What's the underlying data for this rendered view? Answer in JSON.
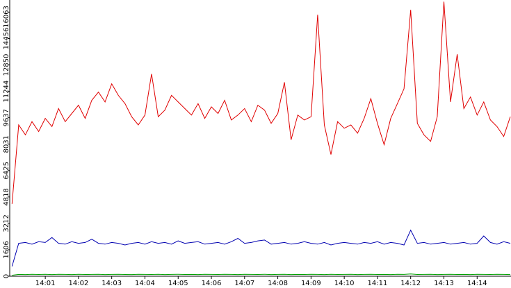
{
  "chart_data": {
    "type": "line",
    "x": [
      840,
      840.2,
      840.4,
      840.6,
      840.8,
      841,
      841.2,
      841.4,
      841.6,
      841.8,
      842,
      842.2,
      842.4,
      842.6,
      842.8,
      843,
      843.2,
      843.4,
      843.6,
      843.8,
      844,
      844.2,
      844.4,
      844.6,
      844.8,
      845,
      845.2,
      845.4,
      845.6,
      845.8,
      846,
      846.2,
      846.4,
      846.6,
      846.8,
      847,
      847.2,
      847.4,
      847.6,
      847.8,
      848,
      848.2,
      848.4,
      848.6,
      848.8,
      849,
      849.2,
      849.4,
      849.6,
      849.8,
      850,
      850.2,
      850.4,
      850.6,
      850.8,
      851,
      851.2,
      851.4,
      851.6,
      851.8,
      852,
      852.2,
      852.4,
      852.6,
      852.8,
      853,
      853.2,
      853.4,
      853.6,
      853.8,
      854,
      854.2,
      854.4,
      854.6,
      854.8,
      855
    ],
    "series": [
      {
        "color": "#e00000",
        "values": [
          4400,
          9200,
          8600,
          9400,
          8800,
          9600,
          9100,
          10200,
          9400,
          9900,
          10400,
          9600,
          10700,
          11200,
          10600,
          11700,
          11000,
          10500,
          9700,
          9200,
          9800,
          12300,
          9700,
          10100,
          11000,
          10600,
          10200,
          9800,
          10500,
          9600,
          10300,
          9900,
          10700,
          9500,
          9800,
          10200,
          9400,
          10400,
          10100,
          9300,
          9900,
          11800,
          8300,
          9800,
          9500,
          9700,
          15900,
          9200,
          7400,
          9400,
          9000,
          9200,
          8700,
          9600,
          10800,
          9300,
          8000,
          9600,
          10500,
          11400,
          16200,
          9300,
          8600,
          8200,
          9700,
          16700,
          10600,
          13500,
          10200,
          10900,
          9800,
          10600,
          9500,
          9100,
          8500,
          9700
        ]
      },
      {
        "color": "#0000b0",
        "values": [
          600,
          2000,
          2050,
          1950,
          2100,
          2050,
          2350,
          2000,
          1950,
          2100,
          2000,
          2050,
          2250,
          2000,
          1950,
          2050,
          2000,
          1900,
          2000,
          2050,
          1950,
          2100,
          2000,
          2050,
          1950,
          2150,
          2000,
          2050,
          2100,
          1950,
          2000,
          2050,
          1950,
          2100,
          2300,
          2000,
          2050,
          2150,
          2200,
          1950,
          2000,
          2050,
          1950,
          2000,
          2100,
          2000,
          1950,
          2050,
          1900,
          2000,
          2050,
          2000,
          1950,
          2050,
          2000,
          2100,
          1950,
          2050,
          2000,
          1900,
          2800,
          2000,
          2050,
          1950,
          2000,
          2050,
          1950,
          2000,
          2050,
          1950,
          2000,
          2450,
          2050,
          1950,
          2100,
          2000
        ]
      },
      {
        "color": "#00a000",
        "values": [
          60,
          110,
          100,
          120,
          105,
          115,
          100,
          120,
          110,
          100,
          115,
          105,
          110,
          120,
          100,
          110,
          115,
          105,
          100,
          120,
          110,
          105,
          115,
          100,
          110,
          120,
          105,
          110,
          100,
          115,
          110,
          105,
          120,
          110,
          100,
          115,
          110,
          105,
          120,
          100,
          110,
          115,
          100,
          110,
          105,
          120,
          110,
          100,
          115,
          105,
          110,
          120,
          100,
          110,
          115,
          105,
          110,
          100,
          120,
          110,
          140,
          105,
          110,
          115,
          100,
          110,
          120,
          105,
          110,
          100,
          115,
          110,
          105,
          120,
          110,
          100
        ]
      }
    ],
    "xlim": [
      839.93,
      855.02
    ],
    "ylim": [
      0,
      16800
    ],
    "xticks": [
      {
        "value": 841,
        "label": "14:01"
      },
      {
        "value": 842,
        "label": "14:02"
      },
      {
        "value": 843,
        "label": "14:03"
      },
      {
        "value": 844,
        "label": "14:04"
      },
      {
        "value": 845,
        "label": "14:05"
      },
      {
        "value": 846,
        "label": "14:06"
      },
      {
        "value": 847,
        "label": "14:07"
      },
      {
        "value": 848,
        "label": "14:08"
      },
      {
        "value": 849,
        "label": "14:09"
      },
      {
        "value": 850,
        "label": "14:10"
      },
      {
        "value": 851,
        "label": "14:11"
      },
      {
        "value": 852,
        "label": "14:12"
      },
      {
        "value": 853,
        "label": "14:13"
      },
      {
        "value": 854,
        "label": "14:14"
      }
    ],
    "yticks": [
      0,
      1606,
      3212,
      4818,
      6425,
      8031,
      9637,
      11244,
      12850,
      14456,
      16063
    ]
  }
}
